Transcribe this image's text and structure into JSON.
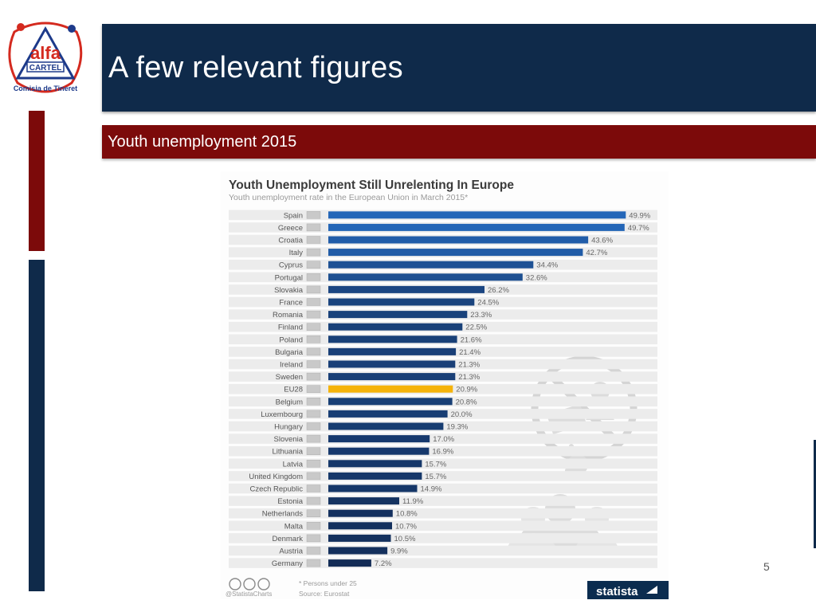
{
  "slide": {
    "logo": {
      "word1": "alfa",
      "word2": "CARTEL",
      "ring_text": "Comisia de Tineret"
    },
    "title": "A few relevant figures",
    "subtitle": "Youth unemployment 2015",
    "page_number": "5"
  },
  "colors": {
    "navy": "#0f2a4a",
    "dark_red": "#7c0a0a",
    "bar_blue": "#2466b8",
    "bar_highlight": "#f5b30a",
    "statista_blue": "#0b2c4f"
  },
  "chart_data": {
    "type": "bar",
    "orientation": "horizontal",
    "title": "Youth Unemployment Still Unrelenting In Europe",
    "subtitle": "Youth unemployment rate in the European Union in March 2015*",
    "categories": [
      "Spain",
      "Greece",
      "Croatia",
      "Italy",
      "Cyprus",
      "Portugal",
      "Slovakia",
      "France",
      "Romania",
      "Finland",
      "Poland",
      "Bulgaria",
      "Ireland",
      "Sweden",
      "EU28",
      "Belgium",
      "Luxembourg",
      "Hungary",
      "Slovenia",
      "Lithuania",
      "Latvia",
      "United Kingdom",
      "Czech Republic",
      "Estonia",
      "Netherlands",
      "Malta",
      "Denmark",
      "Austria",
      "Germany"
    ],
    "values": [
      49.9,
      49.7,
      43.6,
      42.7,
      34.4,
      32.6,
      26.2,
      24.5,
      23.3,
      22.5,
      21.6,
      21.4,
      21.3,
      21.3,
      20.9,
      20.8,
      20.0,
      19.3,
      17.0,
      16.9,
      15.7,
      15.7,
      14.9,
      11.9,
      10.8,
      10.7,
      10.5,
      9.9,
      7.2
    ],
    "value_labels": [
      "49.9%",
      "49.7%",
      "43.6%",
      "42.7%",
      "34.4%",
      "32.6%",
      "26.2%",
      "24.5%",
      "23.3%",
      "22.5%",
      "21.6%",
      "21.4%",
      "21.3%",
      "21.3%",
      "20.9%",
      "20.8%",
      "20.0%",
      "19.3%",
      "17.0%",
      "16.9%",
      "15.7%",
      "15.7%",
      "14.9%",
      "11.9%",
      "10.8%",
      "10.7%",
      "10.5%",
      "9.9%",
      "7.2%"
    ],
    "highlight": "EU28",
    "xlim": [
      0,
      50
    ],
    "footnote": "* Persons under 25",
    "source": "Source: Eurostat",
    "handle": "@StatistaCharts",
    "brand": "statista"
  }
}
